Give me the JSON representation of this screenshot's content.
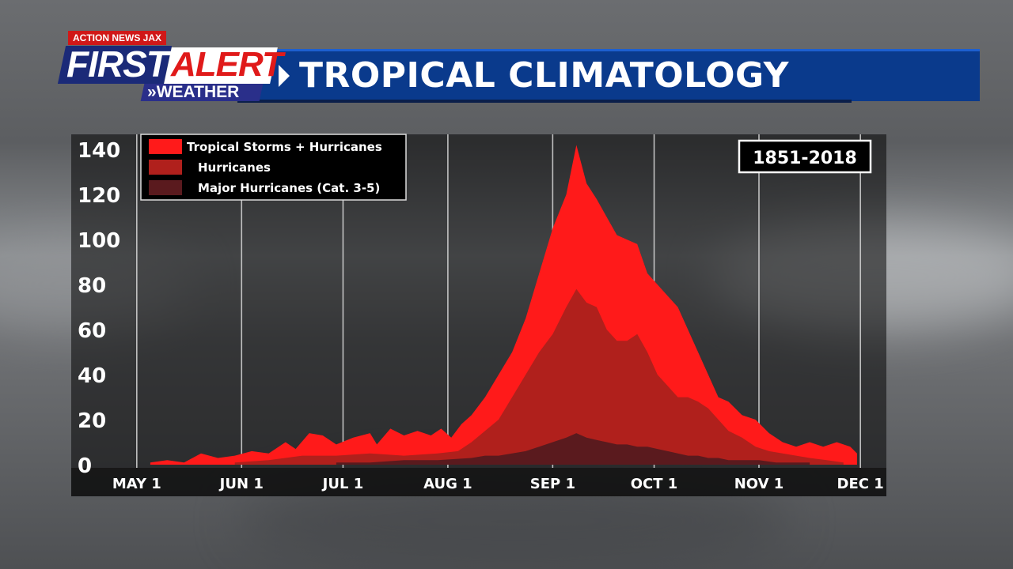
{
  "header": {
    "brand_tag": "ACTION NEWS JAX",
    "brand_first": "FIRST",
    "brand_alert": "ALERT",
    "brand_weather": "WEATHER",
    "title": "TROPICAL CLIMATOLOGY"
  },
  "colors": {
    "header_blue": "#0a3a8c",
    "storms": "#ff1a1a",
    "hurricanes": "#b0201c",
    "major": "#5a1a1e"
  },
  "chart_data": {
    "type": "area",
    "period_label": "1851-2018",
    "x_ticks": [
      "MAY 1",
      "JUN 1",
      "JUL 1",
      "AUG 1",
      "SEP 1",
      "OCT 1",
      "NOV 1",
      "DEC 1"
    ],
    "x_tick_days": [
      1,
      32,
      62,
      93,
      124,
      154,
      185,
      215
    ],
    "y_ticks": [
      0,
      20,
      40,
      60,
      80,
      100,
      120,
      140
    ],
    "ylim": [
      0,
      145
    ],
    "xlim": [
      -2,
      218
    ],
    "grid": true,
    "legend_position": "top-left",
    "x_unit": "day (May 1 = 1)",
    "series": [
      {
        "name": "Tropical Storms + Hurricanes",
        "color": "#ff1a1a",
        "points": [
          [
            5,
            1
          ],
          [
            10,
            2
          ],
          [
            15,
            1
          ],
          [
            20,
            5
          ],
          [
            25,
            3
          ],
          [
            30,
            4
          ],
          [
            35,
            6
          ],
          [
            40,
            5
          ],
          [
            45,
            10
          ],
          [
            48,
            7
          ],
          [
            52,
            14
          ],
          [
            56,
            13
          ],
          [
            60,
            9
          ],
          [
            65,
            12
          ],
          [
            70,
            14
          ],
          [
            72,
            9
          ],
          [
            76,
            16
          ],
          [
            80,
            13
          ],
          [
            84,
            15
          ],
          [
            88,
            13
          ],
          [
            91,
            16
          ],
          [
            94,
            12
          ],
          [
            97,
            18
          ],
          [
            100,
            22
          ],
          [
            104,
            30
          ],
          [
            108,
            40
          ],
          [
            112,
            50
          ],
          [
            116,
            65
          ],
          [
            120,
            85
          ],
          [
            124,
            105
          ],
          [
            128,
            120
          ],
          [
            131,
            142
          ],
          [
            134,
            125
          ],
          [
            137,
            118
          ],
          [
            140,
            110
          ],
          [
            143,
            102
          ],
          [
            146,
            100
          ],
          [
            149,
            98
          ],
          [
            152,
            85
          ],
          [
            155,
            80
          ],
          [
            158,
            75
          ],
          [
            161,
            70
          ],
          [
            164,
            60
          ],
          [
            167,
            50
          ],
          [
            170,
            40
          ],
          [
            173,
            30
          ],
          [
            176,
            28
          ],
          [
            180,
            22
          ],
          [
            184,
            20
          ],
          [
            188,
            14
          ],
          [
            192,
            10
          ],
          [
            196,
            8
          ],
          [
            200,
            10
          ],
          [
            204,
            8
          ],
          [
            208,
            10
          ],
          [
            212,
            8
          ],
          [
            214,
            5
          ]
        ]
      },
      {
        "name": "Hurricanes",
        "color": "#b0201c",
        "points": [
          [
            30,
            1
          ],
          [
            40,
            2
          ],
          [
            50,
            4
          ],
          [
            60,
            4
          ],
          [
            70,
            5
          ],
          [
            80,
            4
          ],
          [
            90,
            5
          ],
          [
            96,
            6
          ],
          [
            100,
            10
          ],
          [
            104,
            15
          ],
          [
            108,
            20
          ],
          [
            112,
            30
          ],
          [
            116,
            40
          ],
          [
            120,
            50
          ],
          [
            124,
            58
          ],
          [
            128,
            70
          ],
          [
            131,
            78
          ],
          [
            134,
            72
          ],
          [
            137,
            70
          ],
          [
            140,
            60
          ],
          [
            143,
            55
          ],
          [
            146,
            55
          ],
          [
            149,
            58
          ],
          [
            152,
            50
          ],
          [
            155,
            40
          ],
          [
            158,
            35
          ],
          [
            161,
            30
          ],
          [
            164,
            30
          ],
          [
            167,
            28
          ],
          [
            170,
            25
          ],
          [
            173,
            20
          ],
          [
            176,
            15
          ],
          [
            180,
            12
          ],
          [
            184,
            8
          ],
          [
            188,
            6
          ],
          [
            192,
            5
          ],
          [
            196,
            4
          ],
          [
            200,
            3
          ],
          [
            205,
            2
          ],
          [
            210,
            1
          ]
        ]
      },
      {
        "name": "Major Hurricanes (Cat. 3-5)",
        "color": "#5a1a1e",
        "points": [
          [
            60,
            1
          ],
          [
            70,
            1
          ],
          [
            80,
            2
          ],
          [
            90,
            2
          ],
          [
            100,
            3
          ],
          [
            104,
            4
          ],
          [
            108,
            4
          ],
          [
            112,
            5
          ],
          [
            116,
            6
          ],
          [
            120,
            8
          ],
          [
            124,
            10
          ],
          [
            128,
            12
          ],
          [
            131,
            14
          ],
          [
            134,
            12
          ],
          [
            137,
            11
          ],
          [
            140,
            10
          ],
          [
            143,
            9
          ],
          [
            146,
            9
          ],
          [
            149,
            8
          ],
          [
            152,
            8
          ],
          [
            155,
            7
          ],
          [
            158,
            6
          ],
          [
            161,
            5
          ],
          [
            164,
            4
          ],
          [
            167,
            4
          ],
          [
            170,
            3
          ],
          [
            173,
            3
          ],
          [
            176,
            2
          ],
          [
            180,
            2
          ],
          [
            185,
            2
          ],
          [
            190,
            1
          ],
          [
            200,
            1
          ]
        ]
      }
    ]
  }
}
